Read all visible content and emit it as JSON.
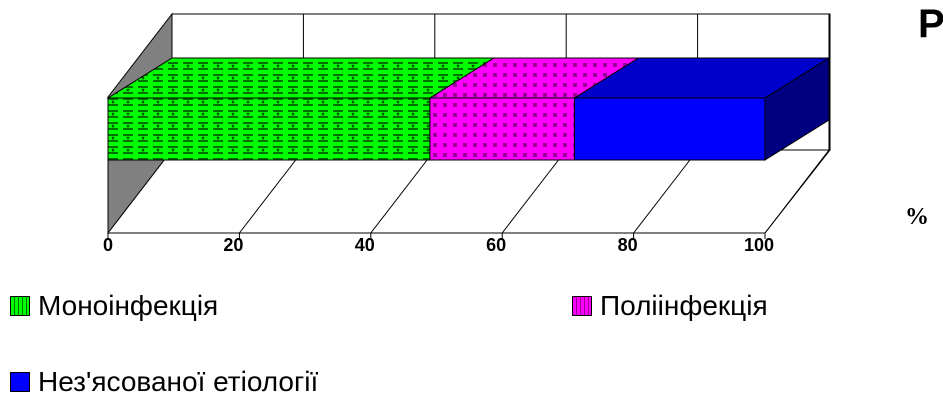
{
  "header": {
    "title_fragment": "Р"
  },
  "chart_data": {
    "type": "bar",
    "orientation": "horizontal",
    "stacked": true,
    "three_d": true,
    "title": "",
    "xlabel": "%",
    "ylabel": "",
    "xlim": [
      0,
      100
    ],
    "x_ticks": [
      "0",
      "20",
      "40",
      "60",
      "80",
      "100"
    ],
    "grid": true,
    "legend_position": "bottom",
    "series": [
      {
        "name": "Моноінфекція",
        "values": [
          49
        ],
        "color": "#00ff00",
        "pattern": "#004000"
      },
      {
        "name": "Поліінфекція",
        "values": [
          22
        ],
        "color": "#ff00ff",
        "pattern": "#800080"
      },
      {
        "name": "Нез'ясованої етіології",
        "values": [
          29
        ],
        "color": "#0000ff",
        "pattern": ""
      }
    ]
  }
}
